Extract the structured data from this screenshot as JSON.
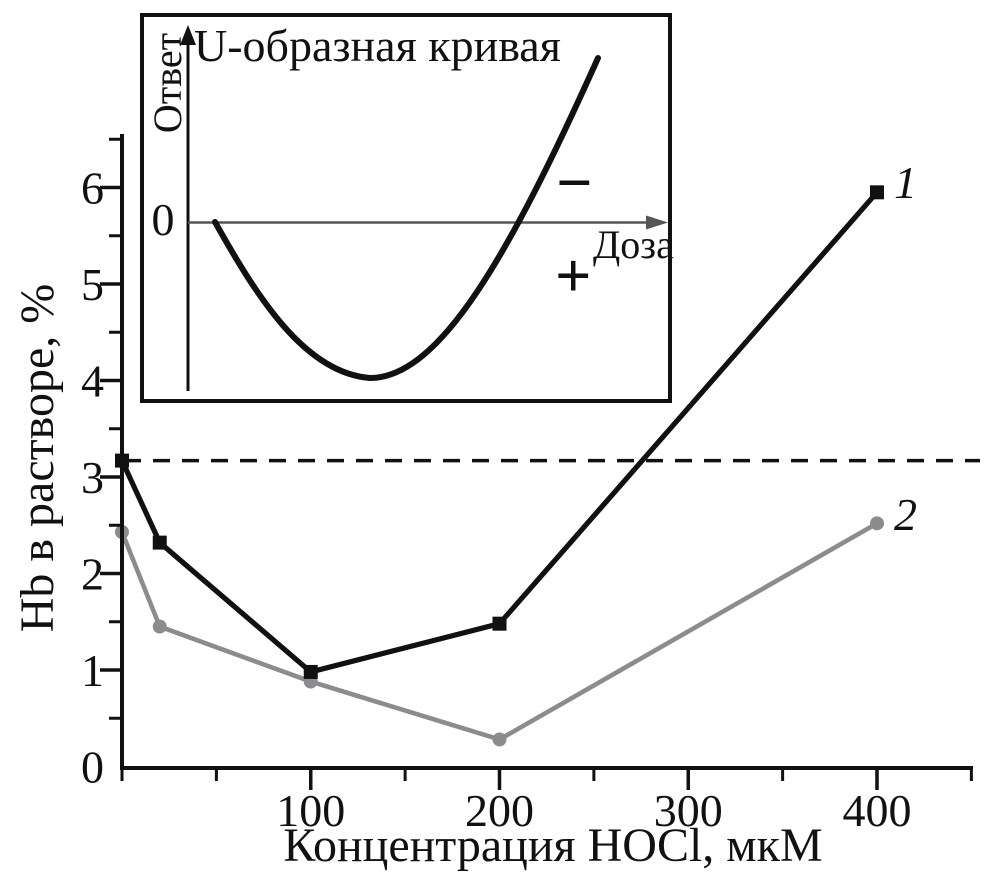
{
  "chart_data": {
    "type": "line",
    "title": "",
    "xlabel": "Концентрация HOCl, мкМ",
    "ylabel": "Hb в растворе, %",
    "x": [
      0,
      20,
      100,
      200,
      400
    ],
    "series": [
      {
        "name": "1",
        "marker": "square",
        "color": "#111111",
        "values": [
          3.17,
          2.32,
          0.98,
          1.48,
          5.95
        ]
      },
      {
        "name": "2",
        "marker": "circle",
        "color": "#8c8c8e",
        "values": [
          2.43,
          1.45,
          0.88,
          0.28,
          2.52
        ]
      }
    ],
    "reference_line": {
      "style": "dashed",
      "y": 3.17,
      "color": "#111111"
    },
    "xlim": [
      0,
      450
    ],
    "ylim": [
      0,
      6.5
    ],
    "x_major_ticks": [
      100,
      200,
      300,
      400
    ],
    "x_minor_ticks": [
      0,
      50,
      150,
      250,
      350,
      450
    ],
    "y_major_ticks": [
      0,
      1,
      2,
      3,
      4,
      5,
      6
    ],
    "y_minor_ticks": [
      0.5,
      1.5,
      2.5,
      3.5,
      4.5,
      5.5,
      6.5
    ],
    "grid": "off",
    "legend_position": "point-end-labels",
    "inset": {
      "type": "schematic-curve",
      "title": "U-образная кривая",
      "ylabel": "Ответ",
      "xlabel": "Доза",
      "origin_label": "0",
      "minus_label": "−",
      "plus_label": "+"
    }
  }
}
